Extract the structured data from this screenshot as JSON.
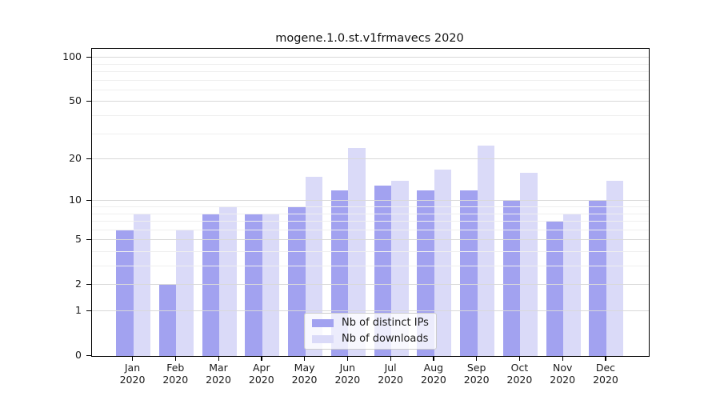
{
  "figure": {
    "title": "mogene.1.0.st.v1frmavecs 2020"
  },
  "chart_data": {
    "type": "bar",
    "title": "mogene.1.0.st.v1frmavecs 2020",
    "categories": [
      "Jan 2020",
      "Feb 2020",
      "Mar 2020",
      "Apr 2020",
      "May 2020",
      "Jun 2020",
      "Jul 2020",
      "Aug 2020",
      "Sep 2020",
      "Oct 2020",
      "Nov 2020",
      "Dec 2020"
    ],
    "series": [
      {
        "name": "Nb of distinct IPs",
        "color": "#a2a2f0",
        "values": [
          6,
          2,
          8,
          8,
          9,
          12,
          13,
          12,
          12,
          10,
          7,
          10
        ]
      },
      {
        "name": "Nb of downloads",
        "color": "#dadaf8",
        "values": [
          8,
          6,
          9,
          8,
          15,
          24,
          14,
          17,
          25,
          16,
          8,
          14
        ]
      }
    ],
    "xlabel": "",
    "ylabel": "",
    "yscale": "log1p",
    "ylim": [
      0,
      115
    ],
    "y_ticks_labeled": [
      0,
      1,
      2,
      5,
      10,
      20,
      50,
      100
    ],
    "y_ticks_minor": [
      3,
      4,
      6,
      7,
      8,
      9,
      30,
      40,
      60,
      70,
      80,
      90
    ],
    "grid": true,
    "legend_position": "inside-bottom-center"
  },
  "colors": {
    "bar_distinct_ips": "#a2a2f0",
    "bar_downloads": "#dadaf8",
    "grid_major": "#d9d9d9",
    "grid_minor": "#efefef",
    "axis_frame": "#000000",
    "text": "#1a1a1a",
    "legend_border": "#cccccc"
  }
}
